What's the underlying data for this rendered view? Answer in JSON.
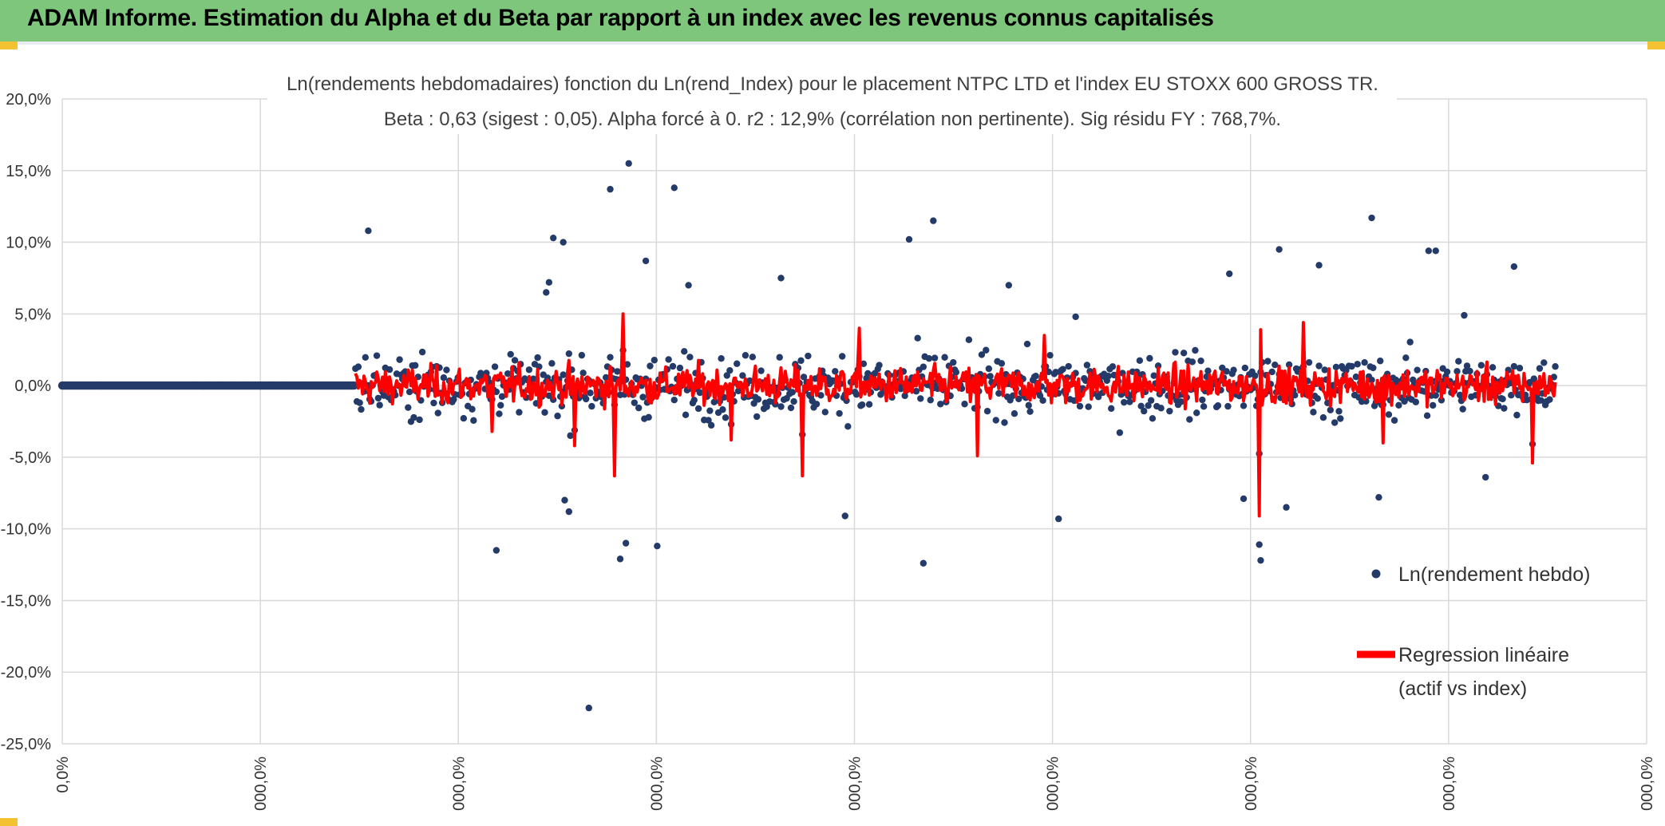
{
  "header": {
    "title": "ADAM Informe. Estimation du Alpha et du Beta par rapport à un index avec les revenus connus capitalisés"
  },
  "colors": {
    "banner": "#7dc67b",
    "scatter": "#243b6a",
    "regression": "#ff0000",
    "grid": "#d9d9d9",
    "corner": "#f3c233"
  },
  "chart_data": {
    "type": "scatter",
    "title": "Ln(rendements hebdomadaires) fonction du Ln(rend_Index) pour le placement NTPC LTD et l'index EU STOXX 600 GROSS TR.",
    "subtitle": "Beta : 0,63 (sigest : 0,05). Alpha forcé à 0. r2 : 12,9% (corrélation non pertinente). Sig résidu FY : 768,7%.",
    "beta": 0.63,
    "alpha": 0,
    "y_ticks": [
      "20,0%",
      "15,0%",
      "10,0%",
      "5,0%",
      "0,0%",
      "-5,0%",
      "-10,0%",
      "-15,0%",
      "-20,0%",
      "-25,0%"
    ],
    "ylim": [
      -25,
      20
    ],
    "x_ticks": [
      "0,0%",
      "000,0%",
      "000,0%",
      "000,0%",
      "000,0%",
      "000,0%",
      "000,0%",
      "000,0%",
      "000,0%"
    ],
    "legend": {
      "scatter_label": "Ln(rendement hebdo)",
      "line_label_1": "Regression linéaire",
      "line_label_2": "(actif vs index)",
      "position": "right"
    },
    "series": [
      {
        "name": "Ln(rendement hebdo)",
        "note": "approx. 1100 weekly points, index 0-205 flat at 0%, index 205-1100 scattered mostly within -5% to +5%",
        "outliers": [
          {
            "i": 215,
            "y": 10.8
          },
          {
            "i": 345,
            "y": 10.3
          },
          {
            "i": 352,
            "y": 10.0
          },
          {
            "i": 305,
            "y": -11.5
          },
          {
            "i": 342,
            "y": 7.2
          },
          {
            "i": 370,
            "y": -22.5
          },
          {
            "i": 385,
            "y": 13.7
          },
          {
            "i": 398,
            "y": 15.5
          },
          {
            "i": 392,
            "y": -12.1
          },
          {
            "i": 396,
            "y": -11.0
          },
          {
            "i": 410,
            "y": 8.7
          },
          {
            "i": 418,
            "y": -11.2
          },
          {
            "i": 430,
            "y": 13.8
          },
          {
            "i": 440,
            "y": 7.0
          },
          {
            "i": 505,
            "y": 7.5
          },
          {
            "i": 550,
            "y": -9.1
          },
          {
            "i": 595,
            "y": 10.2
          },
          {
            "i": 612,
            "y": 11.5
          },
          {
            "i": 605,
            "y": -12.4
          },
          {
            "i": 665,
            "y": 7.0
          },
          {
            "i": 700,
            "y": -9.3
          },
          {
            "i": 712,
            "y": 4.8
          },
          {
            "i": 820,
            "y": 7.8
          },
          {
            "i": 830,
            "y": -7.9
          },
          {
            "i": 841,
            "y": -11.1
          },
          {
            "i": 842,
            "y": -12.2
          },
          {
            "i": 855,
            "y": 9.5
          },
          {
            "i": 860,
            "y": -8.5
          },
          {
            "i": 883,
            "y": 8.4
          },
          {
            "i": 920,
            "y": 11.7
          },
          {
            "i": 960,
            "y": 9.4
          },
          {
            "i": 965,
            "y": 9.4
          },
          {
            "i": 1020,
            "y": 8.3
          },
          {
            "i": 985,
            "y": 4.9
          },
          {
            "i": 1000,
            "y": -6.4
          },
          {
            "i": 925,
            "y": -7.8
          },
          {
            "i": 353,
            "y": -8.0
          },
          {
            "i": 356,
            "y": -8.8
          },
          {
            "i": 340,
            "y": 6.5
          }
        ]
      },
      {
        "name": "Regression linéaire (actif vs index)",
        "note": "beta * index return, mostly within -2% to +2%",
        "spikes": [
          {
            "i": 388,
            "y": -6.3
          },
          {
            "i": 394,
            "y": 5.0
          },
          {
            "i": 520,
            "y": -6.3
          },
          {
            "i": 560,
            "y": 4.0
          },
          {
            "i": 643,
            "y": -4.9
          },
          {
            "i": 690,
            "y": 3.5
          },
          {
            "i": 841,
            "y": -9.1
          },
          {
            "i": 842,
            "y": 3.9
          },
          {
            "i": 872,
            "y": 4.4
          },
          {
            "i": 928,
            "y": -4.0
          },
          {
            "i": 1033,
            "y": -5.4
          },
          {
            "i": 360,
            "y": -4.2
          },
          {
            "i": 302,
            "y": -3.2
          },
          {
            "i": 470,
            "y": -3.8
          }
        ]
      }
    ]
  }
}
